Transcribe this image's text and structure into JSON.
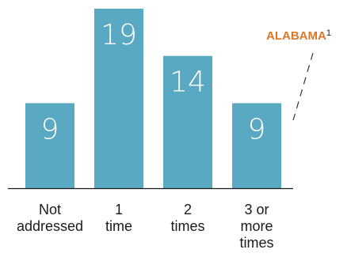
{
  "chart_data": {
    "type": "bar",
    "categories": [
      "Not addressed",
      "1 time",
      "2 times",
      "3 or more times"
    ],
    "category_lines": [
      [
        "Not",
        "addressed"
      ],
      [
        "1",
        "time"
      ],
      [
        "2",
        "times"
      ],
      [
        "3 or",
        "more",
        "times"
      ]
    ],
    "values": [
      9,
      19,
      14,
      9
    ],
    "data_labels": [
      "9",
      "19",
      "14",
      "9"
    ],
    "ylim": [
      0,
      19
    ],
    "grid": false,
    "legend": "none",
    "annotation": {
      "text": "ALABAMA",
      "superscript": "1"
    }
  },
  "colors": {
    "bar": "#5aa9c2",
    "value_text": "#ffffff",
    "axis": "#1a1a1a",
    "annotation": "#d9782b",
    "leader": "#333333",
    "category_text": "#1a1a1a"
  }
}
